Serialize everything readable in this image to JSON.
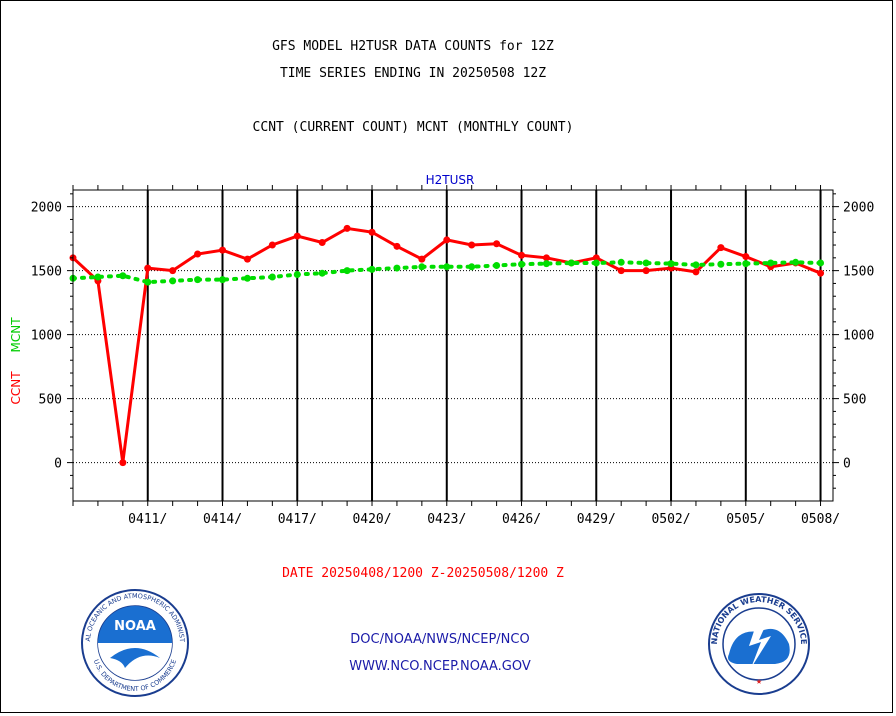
{
  "header": {
    "title_line1": "GFS MODEL H2TUSR DATA COUNTS for 12Z",
    "title_line2": "TIME SERIES ENDING IN 20250508 12Z",
    "subtitle": "CCNT (CURRENT COUNT) MCNT (MONTHLY COUNT)"
  },
  "chart_data": {
    "type": "line",
    "title": "H2TUSR",
    "ylabel_left_1": "CCNT",
    "ylabel_left_2": "MCNT",
    "y_ticks": [
      "2000",
      "1500",
      "1000",
      "500",
      "0"
    ],
    "y_tick_values": [
      2000,
      1500,
      1000,
      500,
      0
    ],
    "ylim": [
      -300,
      2130
    ],
    "x_tick_labels": [
      "0411/",
      "0414/",
      "0417/",
      "0420/",
      "0423/",
      "0426/",
      "0429/",
      "0502/",
      "0505/",
      "0508/"
    ],
    "x_tick_days": [
      3,
      6,
      9,
      12,
      15,
      18,
      21,
      24,
      27,
      30
    ],
    "xlim_days": [
      0,
      30.5
    ],
    "grid": true,
    "series": [
      {
        "name": "CCNT",
        "color": "#ff0000",
        "style": "solid",
        "x_days": [
          0,
          1,
          2,
          3,
          4,
          5,
          6,
          7,
          8,
          9,
          10,
          11,
          12,
          13,
          14,
          15,
          16,
          17,
          18,
          19,
          20,
          21,
          22,
          23,
          24,
          25,
          26,
          27,
          28,
          29,
          30
        ],
        "values": [
          1600,
          1420,
          0,
          1520,
          1500,
          1630,
          1660,
          1590,
          1700,
          1770,
          1720,
          1830,
          1800,
          1690,
          1590,
          1740,
          1700,
          1710,
          1620,
          1600,
          1560,
          1600,
          1500,
          1500,
          1520,
          1490,
          1680,
          1610,
          1530,
          1560,
          1480
        ]
      },
      {
        "name": "MCNT",
        "color": "#00dd00",
        "style": "dotted",
        "x_days": [
          0,
          1,
          2,
          3,
          4,
          5,
          6,
          7,
          8,
          9,
          10,
          11,
          12,
          13,
          14,
          15,
          16,
          17,
          18,
          19,
          20,
          21,
          22,
          23,
          24,
          25,
          26,
          27,
          28,
          29,
          30
        ],
        "values": [
          1440,
          1450,
          1460,
          1410,
          1420,
          1430,
          1430,
          1440,
          1450,
          1470,
          1480,
          1500,
          1510,
          1520,
          1530,
          1530,
          1530,
          1540,
          1550,
          1555,
          1560,
          1560,
          1565,
          1560,
          1555,
          1545,
          1550,
          1555,
          1560,
          1565,
          1560
        ]
      }
    ]
  },
  "footer": {
    "date_range": "DATE 20250408/1200 Z-20250508/1200 Z",
    "link1": "DOC/NOAA/NWS/NCEP/NCO",
    "link2": "WWW.NCO.NCEP.NOAA.GOV",
    "noaa_logo_text": "NOAA",
    "noaa_ring_text": "NATIONAL OCEANIC AND ATMOSPHERIC ADMINISTRATION",
    "noaa_ring_bottom": "U.S. DEPARTMENT OF COMMERCE",
    "nws_ring_text": "NATIONAL WEATHER SERVICE"
  }
}
